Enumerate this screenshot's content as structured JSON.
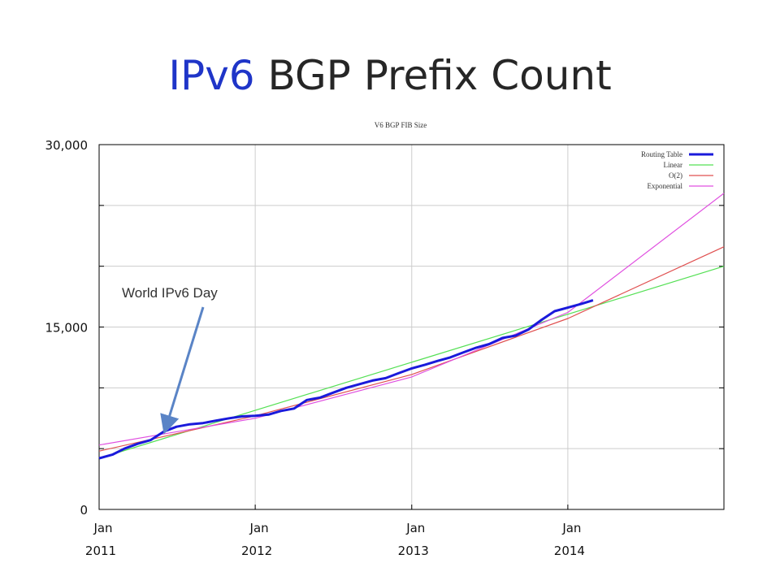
{
  "slide": {
    "title_highlight": "IPv6",
    "title_rest": " BGP Prefix Count"
  },
  "chart_data": {
    "type": "line",
    "title": "V6 BGP FIB Size",
    "x_axis": {
      "range": [
        "2011-01",
        "2015-01"
      ],
      "ticks": [
        {
          "month": "Jan",
          "year": "2011",
          "x": "2011-01"
        },
        {
          "month": "Jan",
          "year": "2012",
          "x": "2012-01"
        },
        {
          "month": "Jan",
          "year": "2013",
          "x": "2013-01"
        },
        {
          "month": "Jan",
          "year": "2014",
          "x": "2014-01"
        }
      ]
    },
    "y_axis": {
      "range": [
        0,
        30000
      ],
      "ticks": [
        {
          "label": "0",
          "value": 0
        },
        {
          "label": "15,000",
          "value": 15000
        },
        {
          "label": "30,000",
          "value": 30000
        }
      ],
      "gridlines": [
        0,
        5000,
        10000,
        15000,
        20000,
        25000,
        30000
      ]
    },
    "grid": true,
    "legend_position": "top-right",
    "series": [
      {
        "name": "Routing Table",
        "color": "#1a1adb",
        "points": [
          [
            "2011-01-01",
            4200
          ],
          [
            "2011-02-01",
            4500
          ],
          [
            "2011-03-01",
            5000
          ],
          [
            "2011-04-01",
            5400
          ],
          [
            "2011-05-01",
            5700
          ],
          [
            "2011-06-01",
            6400
          ],
          [
            "2011-07-01",
            6800
          ],
          [
            "2011-08-01",
            7000
          ],
          [
            "2011-09-01",
            7100
          ],
          [
            "2011-10-01",
            7300
          ],
          [
            "2011-11-01",
            7500
          ],
          [
            "2011-12-01",
            7650
          ],
          [
            "2012-01-01",
            7700
          ],
          [
            "2012-02-01",
            7800
          ],
          [
            "2012-03-01",
            8100
          ],
          [
            "2012-04-01",
            8300
          ],
          [
            "2012-05-01",
            9000
          ],
          [
            "2012-06-01",
            9200
          ],
          [
            "2012-07-01",
            9600
          ],
          [
            "2012-08-01",
            10000
          ],
          [
            "2012-09-01",
            10300
          ],
          [
            "2012-10-01",
            10600
          ],
          [
            "2012-11-01",
            10800
          ],
          [
            "2012-12-01",
            11200
          ],
          [
            "2013-01-01",
            11600
          ],
          [
            "2013-02-01",
            11900
          ],
          [
            "2013-03-01",
            12200
          ],
          [
            "2013-04-01",
            12500
          ],
          [
            "2013-05-01",
            12900
          ],
          [
            "2013-06-01",
            13300
          ],
          [
            "2013-07-01",
            13600
          ],
          [
            "2013-08-01",
            14100
          ],
          [
            "2013-09-01",
            14300
          ],
          [
            "2013-10-01",
            14800
          ],
          [
            "2013-11-01",
            15600
          ],
          [
            "2013-12-01",
            16300
          ],
          [
            "2014-01-01",
            16600
          ],
          [
            "2014-02-01",
            16900
          ],
          [
            "2014-03-01",
            17200
          ]
        ]
      },
      {
        "name": "Linear",
        "color": "#55e055",
        "points": [
          [
            "2011-01-01",
            4200
          ],
          [
            "2015-01-01",
            20000
          ]
        ]
      },
      {
        "name": "O(2)",
        "color": "#e05050",
        "points": [
          [
            "2011-01-01",
            4800
          ],
          [
            "2012-01-01",
            7700
          ],
          [
            "2013-01-01",
            11100
          ],
          [
            "2014-01-01",
            15700
          ],
          [
            "2015-01-01",
            21600
          ]
        ]
      },
      {
        "name": "Exponential",
        "color": "#e050e0",
        "points": [
          [
            "2011-01-01",
            5300
          ],
          [
            "2012-01-01",
            7500
          ],
          [
            "2013-01-01",
            10900
          ],
          [
            "2014-01-01",
            16200
          ],
          [
            "2015-01-01",
            26000
          ]
        ]
      }
    ],
    "annotations": [
      {
        "text": "World IPv6 Day",
        "arrow_to": [
          "2011-06-08",
          6400
        ]
      }
    ]
  }
}
